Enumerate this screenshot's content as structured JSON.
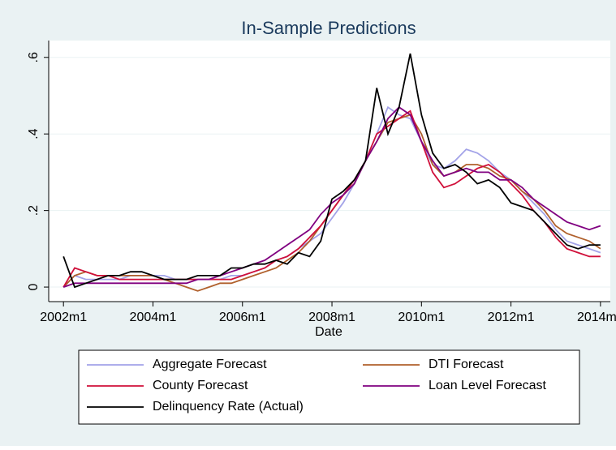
{
  "chart_data": {
    "type": "line",
    "title": "In-Sample Predictions",
    "x_label": "Date",
    "x": [
      2002,
      2002.25,
      2002.5,
      2002.75,
      2003,
      2003.25,
      2003.5,
      2003.75,
      2004,
      2004.25,
      2004.5,
      2004.75,
      2005,
      2005.25,
      2005.5,
      2005.75,
      2006,
      2006.25,
      2006.5,
      2006.75,
      2007,
      2007.25,
      2007.5,
      2007.75,
      2008,
      2008.25,
      2008.5,
      2008.75,
      2009,
      2009.25,
      2009.5,
      2009.75,
      2010,
      2010.25,
      2010.5,
      2010.75,
      2011,
      2011.25,
      2011.5,
      2011.75,
      2012,
      2012.25,
      2012.5,
      2012.75,
      2013,
      2013.25,
      2013.5,
      2013.75,
      2014
    ],
    "series": [
      {
        "name": "Aggregate Forecast",
        "color": "#a3a3e8",
        "values": [
          0,
          0.03,
          0.02,
          0.02,
          0.02,
          0.02,
          0.03,
          0.03,
          0.03,
          0.03,
          0.02,
          0.02,
          0.02,
          0.02,
          0.02,
          0.03,
          0.03,
          0.04,
          0.05,
          0.07,
          0.08,
          0.1,
          0.12,
          0.14,
          0.18,
          0.22,
          0.27,
          0.33,
          0.4,
          0.47,
          0.45,
          0.44,
          0.38,
          0.32,
          0.31,
          0.33,
          0.36,
          0.35,
          0.33,
          0.3,
          0.28,
          0.25,
          0.22,
          0.19,
          0.15,
          0.12,
          0.11,
          0.1,
          0.09
        ]
      },
      {
        "name": "DTI Forecast",
        "color": "#b0602c",
        "values": [
          0,
          0.03,
          0.04,
          0.03,
          0.03,
          0.03,
          0.03,
          0.03,
          0.03,
          0.02,
          0.01,
          0,
          -0.01,
          0,
          0.01,
          0.01,
          0.02,
          0.03,
          0.04,
          0.05,
          0.07,
          0.09,
          0.12,
          0.16,
          0.2,
          0.24,
          0.27,
          0.33,
          0.38,
          0.43,
          0.44,
          0.45,
          0.4,
          0.32,
          0.29,
          0.3,
          0.32,
          0.32,
          0.31,
          0.29,
          0.28,
          0.25,
          0.23,
          0.2,
          0.16,
          0.14,
          0.13,
          0.12,
          0.1
        ]
      },
      {
        "name": "County Forecast",
        "color": "#d0103a",
        "values": [
          0,
          0.05,
          0.04,
          0.03,
          0.03,
          0.02,
          0.02,
          0.02,
          0.02,
          0.02,
          0.02,
          0.02,
          0.02,
          0.02,
          0.02,
          0.02,
          0.03,
          0.04,
          0.05,
          0.07,
          0.08,
          0.1,
          0.13,
          0.16,
          0.2,
          0.24,
          0.28,
          0.33,
          0.4,
          0.42,
          0.44,
          0.46,
          0.38,
          0.3,
          0.26,
          0.27,
          0.29,
          0.31,
          0.32,
          0.3,
          0.27,
          0.24,
          0.2,
          0.17,
          0.13,
          0.1,
          0.09,
          0.08,
          0.08
        ]
      },
      {
        "name": "Loan Level Forecast",
        "color": "#800080",
        "values": [
          0,
          0.01,
          0.01,
          0.01,
          0.01,
          0.01,
          0.01,
          0.01,
          0.01,
          0.01,
          0.01,
          0.01,
          0.02,
          0.02,
          0.03,
          0.04,
          0.05,
          0.06,
          0.07,
          0.09,
          0.11,
          0.13,
          0.15,
          0.19,
          0.22,
          0.24,
          0.27,
          0.33,
          0.38,
          0.44,
          0.47,
          0.45,
          0.38,
          0.33,
          0.29,
          0.3,
          0.31,
          0.3,
          0.3,
          0.28,
          0.28,
          0.26,
          0.23,
          0.21,
          0.19,
          0.17,
          0.16,
          0.15,
          0.16
        ]
      },
      {
        "name": "Delinquency Rate (Actual)",
        "color": "#000000",
        "values": [
          0.08,
          0,
          0.01,
          0.02,
          0.03,
          0.03,
          0.04,
          0.04,
          0.03,
          0.02,
          0.02,
          0.02,
          0.03,
          0.03,
          0.03,
          0.05,
          0.05,
          0.06,
          0.06,
          0.07,
          0.06,
          0.09,
          0.08,
          0.12,
          0.23,
          0.25,
          0.28,
          0.33,
          0.52,
          0.4,
          0.47,
          0.61,
          0.45,
          0.35,
          0.31,
          0.32,
          0.3,
          0.27,
          0.28,
          0.26,
          0.22,
          0.21,
          0.2,
          0.17,
          0.14,
          0.11,
          0.1,
          0.11,
          0.11
        ]
      }
    ],
    "xlim": [
      2001.67,
      2014.22
    ],
    "xticks": [
      {
        "value": 2002,
        "label": "2002m1"
      },
      {
        "value": 2004,
        "label": "2004m1"
      },
      {
        "value": 2006,
        "label": "2006m1"
      },
      {
        "value": 2008,
        "label": "2008m1"
      },
      {
        "value": 2010,
        "label": "2010m1"
      },
      {
        "value": 2012,
        "label": "2012m1"
      },
      {
        "value": 2014,
        "label": "2014m1"
      }
    ],
    "ylim": [
      -0.038,
      0.644
    ],
    "yticks": [
      0,
      {
        "value": 0.2,
        "label": ".2"
      },
      {
        "value": 0.4,
        "label": ".4"
      },
      {
        "value": 0.6,
        "label": ".6"
      }
    ],
    "grid": true,
    "legend": "bottom"
  }
}
